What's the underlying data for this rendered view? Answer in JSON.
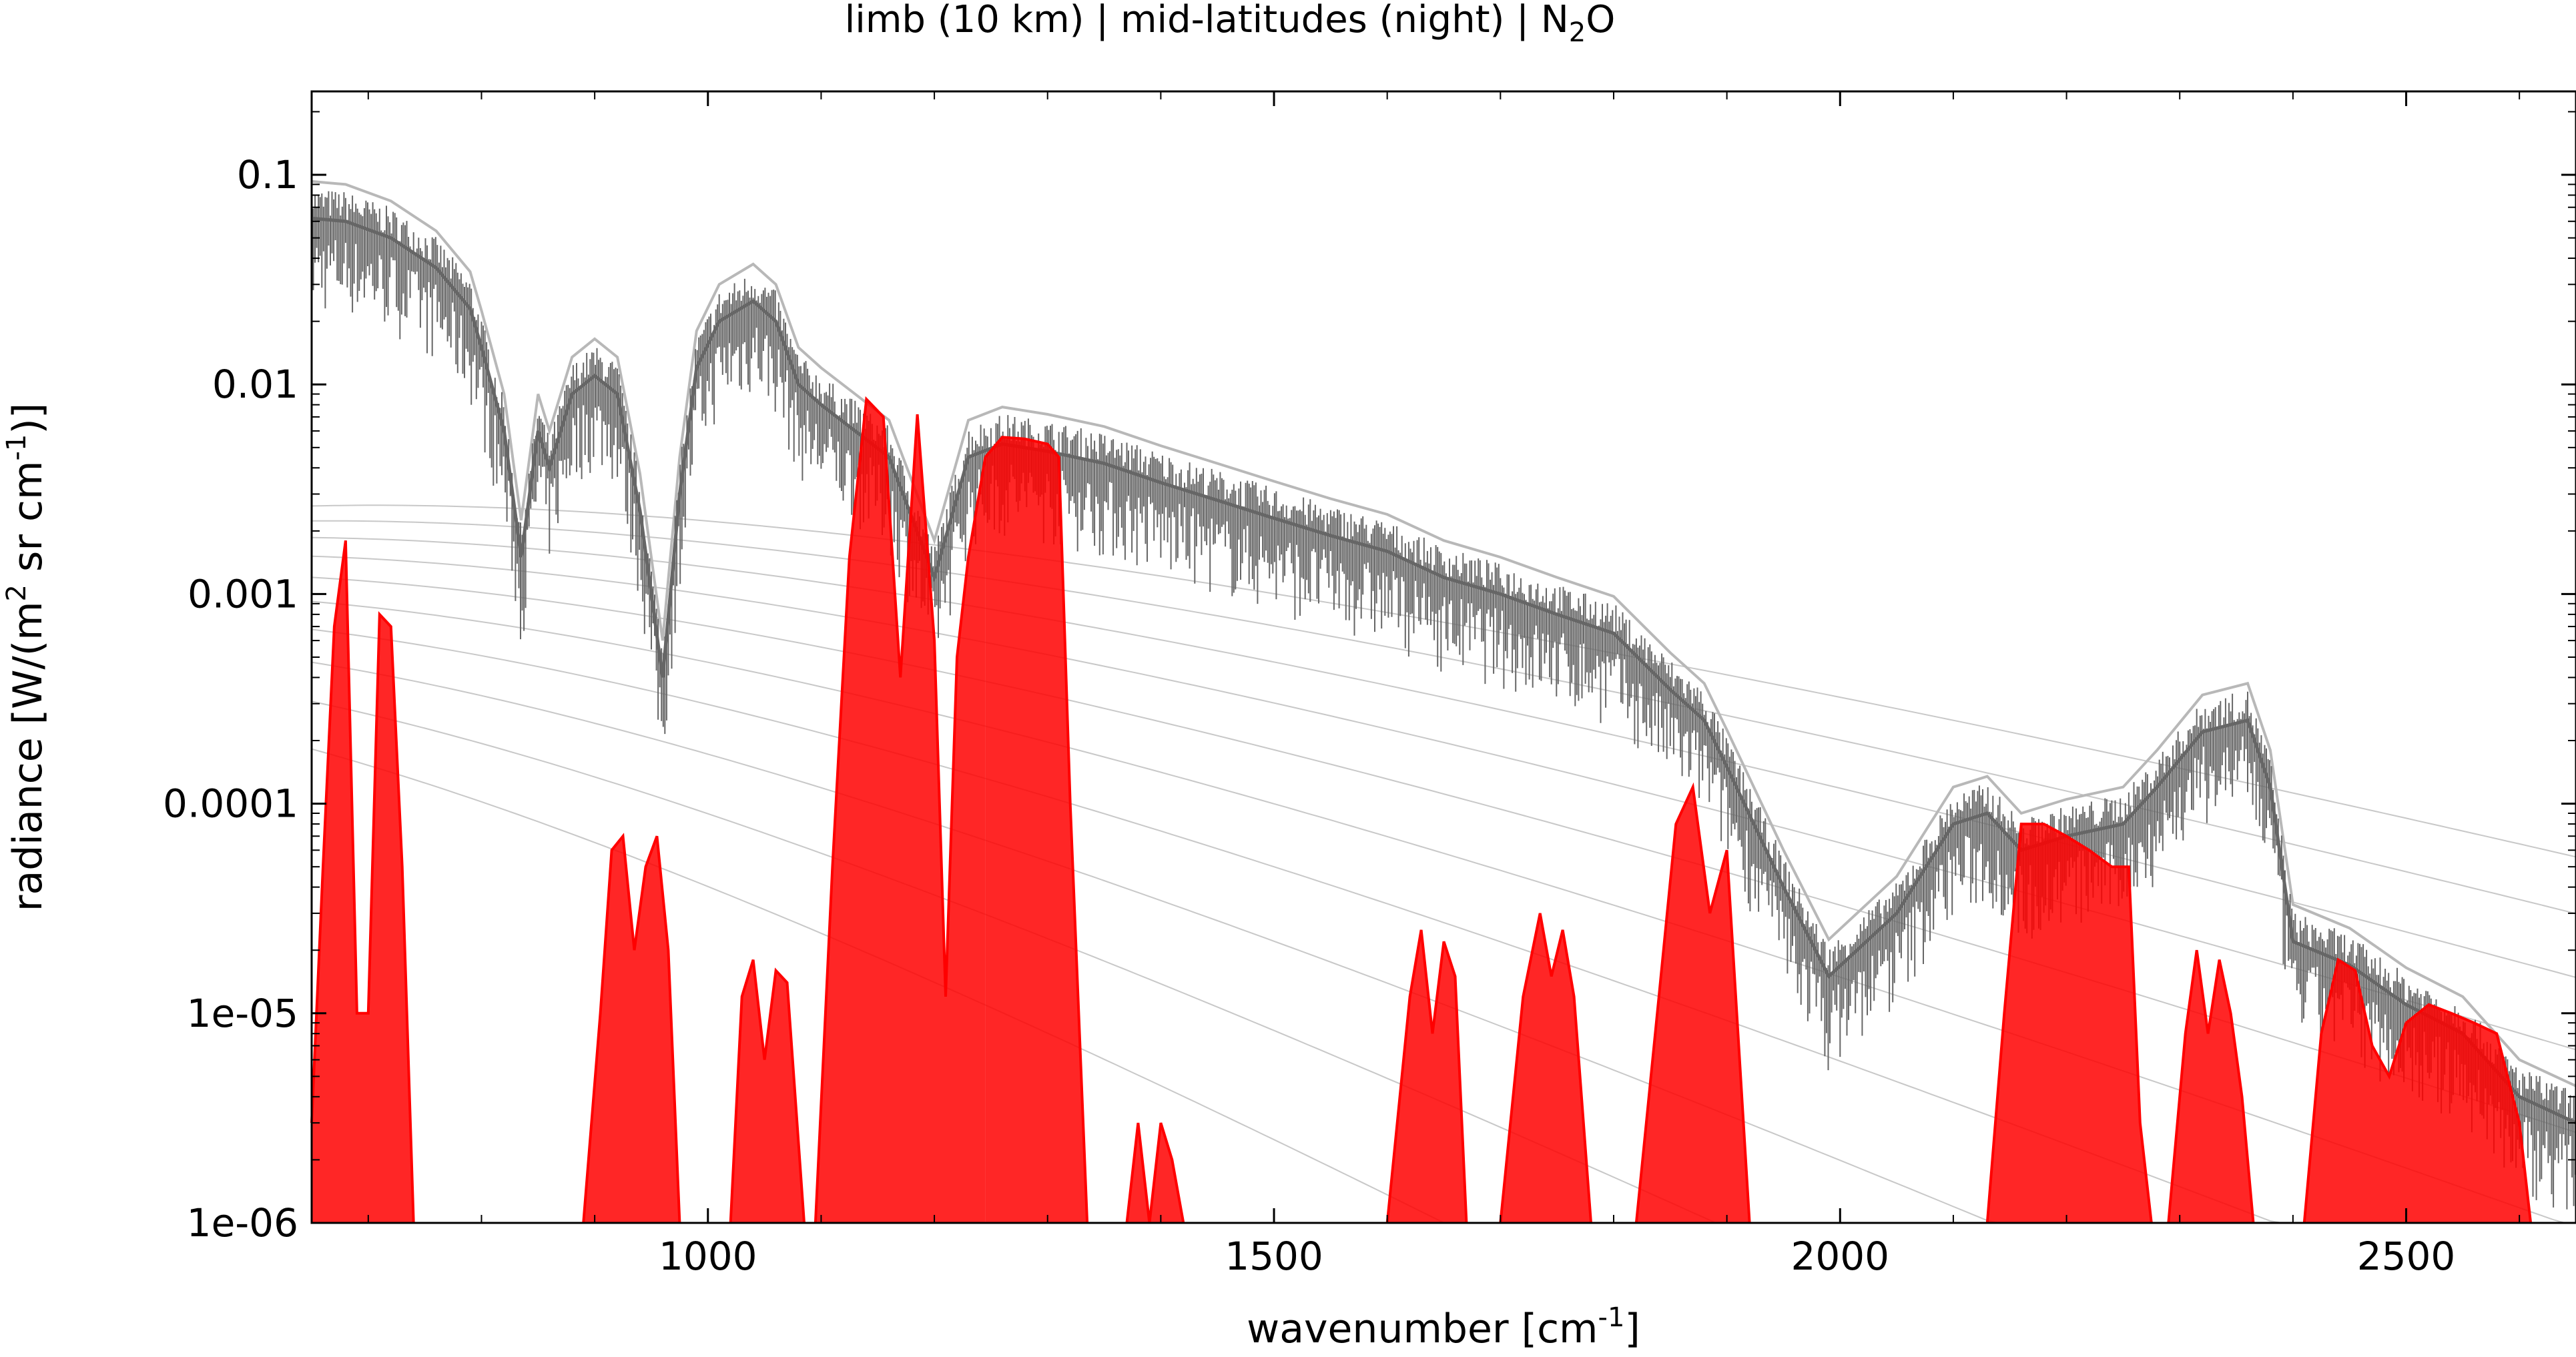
{
  "chart_data": {
    "type": "line",
    "title": "limb (10 km) | mid-latitudes (night) | N₂O",
    "title_parts": {
      "main": "limb (10 km) | mid-latitudes (night) | N",
      "sub": "2",
      "tail": "O"
    },
    "xlabel": "wavenumber [cm⁻¹]",
    "xlabel_parts": {
      "main": "wavenumber [cm",
      "sup": "-1",
      "tail": "]"
    },
    "ylabel": "radiance [W/(m² sr cm⁻¹)]",
    "ylabel_parts": {
      "a": "radiance [W/(m",
      "sup1": "2",
      "b": " sr cm",
      "sup2": "-1",
      "c": ")]"
    },
    "xlim": [
      650,
      2650
    ],
    "ylim": [
      1e-06,
      0.25
    ],
    "yscale": "log",
    "grid": false,
    "x_ticks": [
      1000,
      1500,
      2000,
      2500
    ],
    "x_tick_labels": [
      "1000",
      "1500",
      "2000",
      "2500"
    ],
    "y_ticks": [
      1e-06,
      1e-05,
      0.0001,
      0.001,
      0.01,
      0.1
    ],
    "y_tick_labels": [
      "1e-06",
      "1e-05",
      "0.0001",
      "0.001",
      "0.01",
      "0.1"
    ],
    "colors": {
      "total": "#666666",
      "total_light": "#b8b8b8",
      "n2o": "#ff0000",
      "planck": "#c8c8c8"
    },
    "series": [
      {
        "role": "total",
        "x": [
          650,
          680,
          720,
          760,
          790,
          800,
          820,
          835,
          850,
          860,
          880,
          900,
          920,
          940,
          960,
          975,
          990,
          1010,
          1040,
          1060,
          1080,
          1100,
          1130,
          1160,
          1200,
          1230,
          1260,
          1300,
          1350,
          1400,
          1450,
          1500,
          1550,
          1600,
          1650,
          1700,
          1750,
          1800,
          1850,
          1880,
          1900,
          1950,
          1990,
          2050,
          2100,
          2130,
          2160,
          2200,
          2250,
          2280,
          2320,
          2360,
          2380,
          2400,
          2450,
          2500,
          2550,
          2600,
          2650
        ],
        "y": [
          0.062,
          0.06,
          0.05,
          0.036,
          0.023,
          0.015,
          0.006,
          0.0015,
          0.006,
          0.004,
          0.009,
          0.011,
          0.009,
          0.0025,
          0.0004,
          0.003,
          0.012,
          0.02,
          0.025,
          0.02,
          0.01,
          0.008,
          0.006,
          0.0045,
          0.0012,
          0.0045,
          0.0052,
          0.0048,
          0.0042,
          0.0034,
          0.0028,
          0.0023,
          0.0019,
          0.0016,
          0.0012,
          0.001,
          0.0008,
          0.00065,
          0.00035,
          0.00025,
          0.00015,
          4e-05,
          1.5e-05,
          3e-05,
          8e-05,
          9e-05,
          6e-05,
          7e-05,
          8e-05,
          0.00012,
          0.00022,
          0.00025,
          0.00012,
          2.2e-05,
          1.7e-05,
          1.1e-05,
          8e-06,
          4e-06,
          3e-06
        ]
      },
      {
        "role": "n2o",
        "bands": [
          {
            "x": [
              650,
              660,
              670,
              680,
              690,
              700,
              710,
              720,
              730,
              740
            ],
            "y": [
              3e-06,
              5e-05,
              0.0007,
              0.0018,
              1e-05,
              1e-05,
              0.0008,
              0.0007,
              5e-05,
              1e-06
            ]
          },
          {
            "x": [
              890,
              905,
              915,
              925,
              935,
              945,
              955,
              965,
              975
            ],
            "y": [
              1e-06,
              1e-05,
              6e-05,
              7e-05,
              2e-05,
              5e-05,
              7e-05,
              2e-05,
              1e-06
            ]
          },
          {
            "x": [
              1020,
              1030,
              1040,
              1050,
              1060,
              1070,
              1085
            ],
            "y": [
              1e-06,
              1.2e-05,
              1.8e-05,
              6e-06,
              1.6e-05,
              1.4e-05,
              1e-06
            ]
          },
          {
            "x": [
              1095,
              1110,
              1125,
              1140,
              1155,
              1170,
              1185,
              1200,
              1210,
              1220,
              1230,
              1245
            ],
            "y": [
              1e-06,
              5e-05,
              0.0015,
              0.0085,
              0.007,
              0.0004,
              0.0072,
              0.0006,
              1.2e-05,
              0.0005,
              0.0015,
              0.0045
            ]
          },
          {
            "x": [
              1245,
              1260,
              1280,
              1300,
              1310,
              1320,
              1335
            ],
            "y": [
              0.0045,
              0.0056,
              0.0055,
              0.0052,
              0.0045,
              0.0001,
              1e-06
            ]
          },
          {
            "x": [
              1370,
              1380,
              1390,
              1400,
              1410,
              1420
            ],
            "y": [
              1e-06,
              3e-06,
              1e-06,
              3e-06,
              2e-06,
              1e-06
            ]
          },
          {
            "x": [
              1600,
              1620,
              1630,
              1640,
              1650,
              1660,
              1670
            ],
            "y": [
              1e-06,
              1.2e-05,
              2.5e-05,
              8e-06,
              2.2e-05,
              1.5e-05,
              1e-06
            ]
          },
          {
            "x": [
              1700,
              1720,
              1735,
              1745,
              1755,
              1765,
              1780
            ],
            "y": [
              1e-06,
              1.2e-05,
              3e-05,
              1.5e-05,
              2.5e-05,
              1.2e-05,
              1e-06
            ]
          },
          {
            "x": [
              1820,
              1840,
              1855,
              1870,
              1885,
              1900,
              1920
            ],
            "y": [
              1e-06,
              1.2e-05,
              8e-05,
              0.00012,
              3e-05,
              6e-05,
              1e-06
            ]
          },
          {
            "x": [
              2130,
              2145,
              2160,
              2180,
              2200,
              2220,
              2240,
              2255,
              2265,
              2275
            ],
            "y": [
              1e-06,
              1e-05,
              8e-05,
              8e-05,
              7e-05,
              6e-05,
              5e-05,
              5e-05,
              3e-06,
              1e-06
            ]
          },
          {
            "x": [
              2290,
              2305,
              2315,
              2325,
              2335,
              2345,
              2355,
              2365
            ],
            "y": [
              1e-06,
              8e-06,
              2e-05,
              8e-06,
              1.8e-05,
              1e-05,
              4e-06,
              1e-06
            ]
          },
          {
            "x": [
              2410,
              2425,
              2440,
              2455,
              2470,
              2485,
              2500,
              2520,
              2540,
              2560,
              2580,
              2600,
              2610
            ],
            "y": [
              1e-06,
              8e-06,
              1.8e-05,
              1.6e-05,
              7e-06,
              5e-06,
              9e-06,
              1.1e-05,
              1e-05,
              9e-06,
              8e-06,
              3e-06,
              1e-06
            ]
          }
        ]
      }
    ],
    "planck_reference_temperatures_K": [
      180,
      200,
      220,
      240,
      260,
      280,
      300,
      320,
      340,
      360
    ]
  }
}
